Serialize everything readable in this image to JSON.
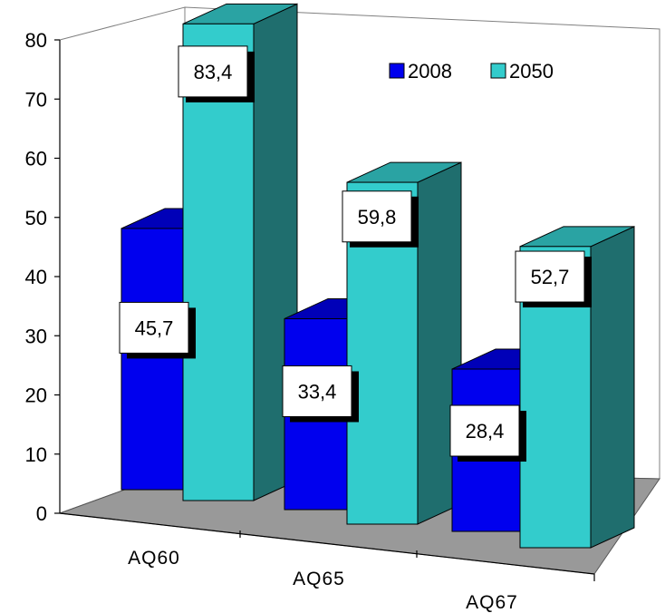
{
  "chart_data": {
    "type": "bar",
    "categories": [
      "AQ60",
      "AQ65",
      "AQ67"
    ],
    "series": [
      {
        "name": "2008",
        "values": [
          45.7,
          33.4,
          28.4
        ],
        "labels": [
          "45,7",
          "33,4",
          "28,4"
        ]
      },
      {
        "name": "2050",
        "values": [
          83.4,
          59.8,
          52.7
        ],
        "labels": [
          "83,4",
          "59,8",
          "52,7"
        ]
      }
    ],
    "ylim": [
      0,
      80
    ],
    "yticks": [
      "0",
      "10",
      "20",
      "30",
      "40",
      "50",
      "60",
      "70",
      "80"
    ],
    "grid": false,
    "legend_position": "top-right",
    "three_d": true
  },
  "colors": {
    "series_2008": {
      "front": "#0000ee",
      "top": "#0000b8",
      "side": "#00006e"
    },
    "series_2050": {
      "front": "#33cccc",
      "top": "#2aa3a3",
      "side": "#1f6e6e"
    },
    "floor": "#999999",
    "label_shadow": "#000000",
    "label_bg": "#ffffff"
  }
}
